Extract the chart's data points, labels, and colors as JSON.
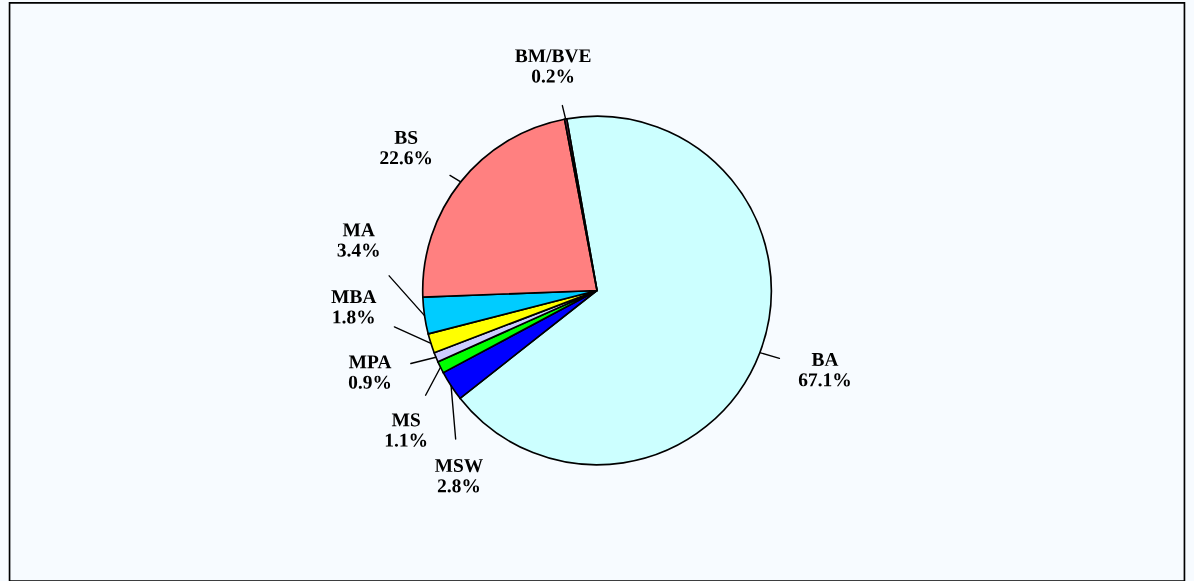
{
  "chart_data": {
    "type": "pie",
    "categories": [
      "BA",
      "MSW",
      "MS",
      "MPA",
      "MBA",
      "MA",
      "BS",
      "BM/BVE"
    ],
    "values": [
      67.1,
      2.8,
      1.1,
      0.9,
      1.8,
      3.4,
      22.6,
      0.2
    ],
    "colors": [
      "#ccffff",
      "#0000ff",
      "#00ff00",
      "#ccccff",
      "#ffff00",
      "#00ccff",
      "#ff8080",
      "#993366"
    ],
    "value_labels": [
      "67.1%",
      "2.8%",
      "1.1%",
      "0.9%",
      "1.8%",
      "3.4%",
      "22.6%",
      "0.2%"
    ]
  }
}
